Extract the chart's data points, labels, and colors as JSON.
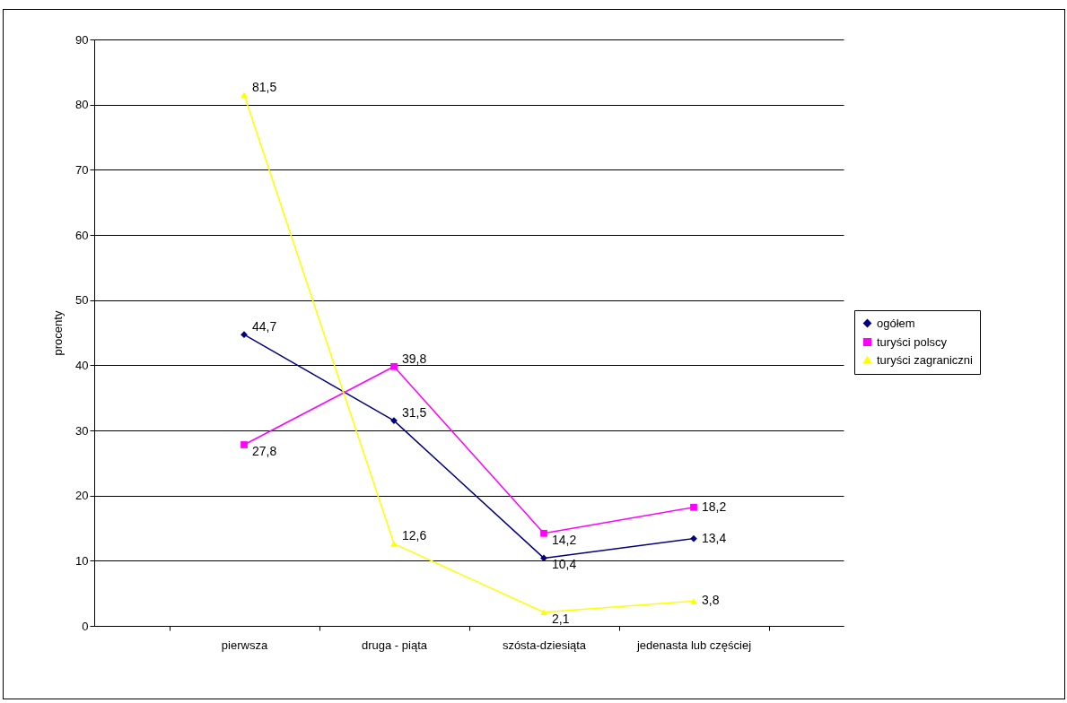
{
  "chart_data": {
    "type": "line",
    "ylabel": "procenty",
    "categories": [
      "pierwsza",
      "druga - piąta",
      "szósta-dziesiąta",
      "jedenasta lub częściej"
    ],
    "series": [
      {
        "name": "ogółem",
        "color": "#000080",
        "marker": "diamond",
        "values": [
          44.7,
          31.5,
          10.4,
          13.4
        ],
        "value_labels": [
          "44,7",
          "31,5",
          "10,4",
          "13,4"
        ]
      },
      {
        "name": "turyści polscy",
        "color": "#ff00ff",
        "marker": "square",
        "values": [
          27.8,
          39.8,
          14.2,
          18.2
        ],
        "value_labels": [
          "27,8",
          "39,8",
          "14,2",
          "18,2"
        ]
      },
      {
        "name": "turyści zagraniczni",
        "color": "#ffff00",
        "marker": "triangle",
        "values": [
          81.5,
          12.6,
          2.1,
          3.8
        ],
        "value_labels": [
          "81,5",
          "12,6",
          "2,1",
          "3,8"
        ]
      }
    ],
    "ylim": [
      0,
      90
    ],
    "yticks": [
      0,
      10,
      20,
      30,
      40,
      50,
      60,
      70,
      80,
      90
    ],
    "grid": "y",
    "legend": "right"
  }
}
